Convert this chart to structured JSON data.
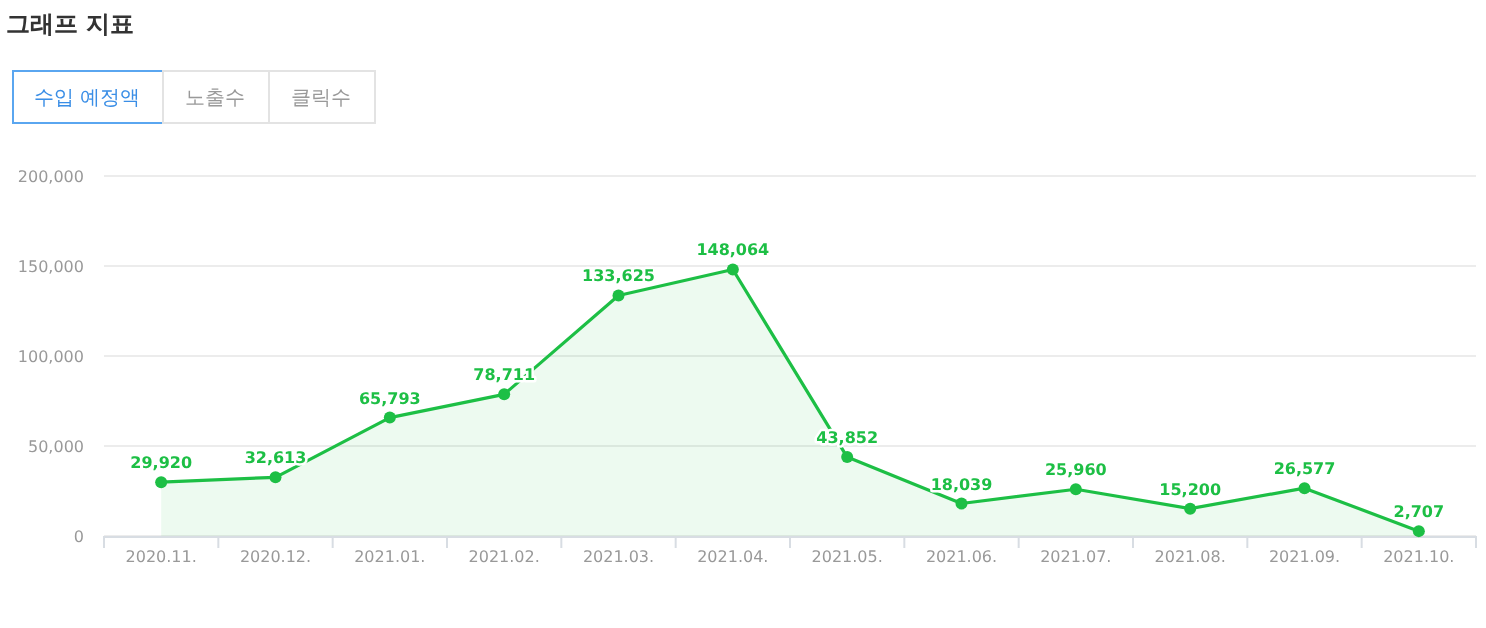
{
  "chart_data": {
    "type": "area",
    "title": "그래프 지표",
    "annotations": [
      "수입 예정액",
      "노출수",
      "클릭수"
    ],
    "categories": [
      "2020.11.",
      "2020.12.",
      "2021.01.",
      "2021.02.",
      "2021.03.",
      "2021.04.",
      "2021.05.",
      "2021.06.",
      "2021.07.",
      "2021.08.",
      "2021.09.",
      "2021.10."
    ],
    "values": [
      29920,
      32613,
      65793,
      78711,
      133625,
      148064,
      43852,
      18039,
      25960,
      15200,
      26577,
      2707
    ],
    "value_labels": [
      "29,920",
      "32,613",
      "65,793",
      "78,711",
      "133,625",
      "148,064",
      "43,852",
      "18,039",
      "25,960",
      "15,200",
      "26,577",
      "2,707"
    ],
    "color": "#1dbf45",
    "ylim": [
      0,
      200000
    ],
    "yticks": [
      {
        "value": 0,
        "label": "0"
      },
      {
        "value": 50000,
        "label": "50,000"
      },
      {
        "value": 100000,
        "label": "100,000"
      },
      {
        "value": 150000,
        "label": "150,000"
      },
      {
        "value": 200000,
        "label": "200,000"
      }
    ],
    "grid": "y",
    "marker": "circle",
    "line_style": "solid"
  }
}
